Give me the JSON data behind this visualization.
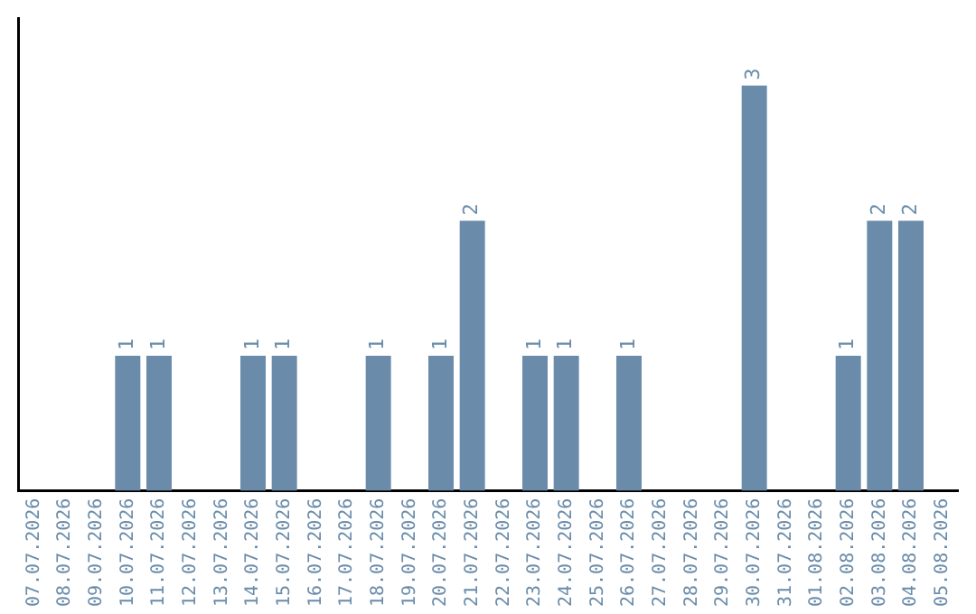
{
  "chart_data": {
    "type": "bar",
    "relative": false,
    "categories": [
      "07.07.2026",
      "08.07.2026",
      "09.07.2026",
      "10.07.2026",
      "11.07.2026",
      "12.07.2026",
      "13.07.2026",
      "14.07.2026",
      "15.07.2026",
      "16.07.2026",
      "17.07.2026",
      "18.07.2026",
      "19.07.2026",
      "20.07.2026",
      "21.07.2026",
      "22.07.2026",
      "23.07.2026",
      "24.07.2026",
      "25.07.2026",
      "26.07.2026",
      "27.07.2026",
      "28.07.2026",
      "29.07.2026",
      "30.07.2026",
      "31.07.2026",
      "01.08.2026",
      "02.08.2026",
      "03.08.2026",
      "04.08.2026",
      "05.08.2026"
    ],
    "values": [
      0,
      0,
      0,
      1,
      1,
      0,
      0,
      1,
      1,
      0,
      0,
      1,
      0,
      1,
      2,
      0,
      1,
      1,
      0,
      1,
      0,
      0,
      0,
      3,
      0,
      0,
      1,
      2,
      2,
      0
    ],
    "value_labels": [
      null,
      null,
      null,
      "1",
      "1",
      null,
      null,
      "1",
      "1",
      null,
      null,
      "1",
      null,
      "1",
      "2",
      null,
      "1",
      "1",
      null,
      "1",
      null,
      null,
      null,
      "3",
      null,
      null,
      "1",
      "2",
      "2",
      null
    ],
    "color": "#6a8caa",
    "grid": false,
    "legend": false,
    "tick_labels": "x"
  }
}
